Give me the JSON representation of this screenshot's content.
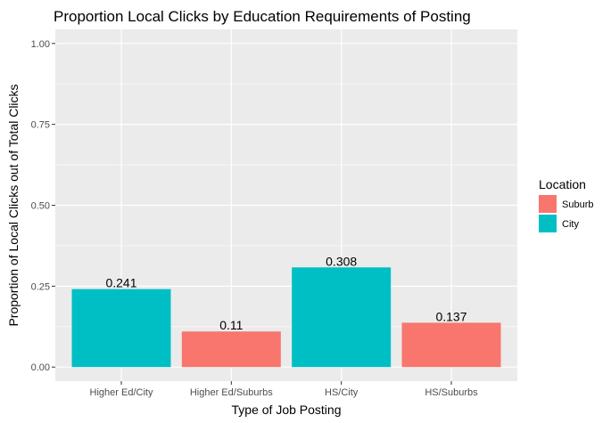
{
  "chart_data": {
    "type": "bar",
    "title": "Proportion Local Clicks by Education Requirements of Posting",
    "xlabel": "Type of Job Posting",
    "ylabel": "Proportion of Local Clicks out of Total Clicks",
    "ylim": [
      0,
      1
    ],
    "yticks": [
      0.0,
      0.25,
      0.5,
      0.75,
      1.0
    ],
    "ytick_labels": [
      "0.00",
      "0.25",
      "0.50",
      "0.75",
      "1.00"
    ],
    "grid": true,
    "categories": [
      "Higher Ed/City",
      "Higher Ed/Suburbs",
      "HS/City",
      "HS/Suburbs"
    ],
    "values": [
      0.241,
      0.11,
      0.308,
      0.137
    ],
    "value_labels": [
      "0.241",
      "0.11",
      "0.308",
      "0.137"
    ],
    "bar_groups": [
      "City",
      "Suburb",
      "City",
      "Suburb"
    ],
    "legend": {
      "title": "Location",
      "placement": "right",
      "entries": [
        {
          "name": "Suburb",
          "color": "#F8766D"
        },
        {
          "name": "City",
          "color": "#00BFC4"
        }
      ]
    },
    "panel_background": "#EBEBEB",
    "grid_color": "#FFFFFF"
  }
}
